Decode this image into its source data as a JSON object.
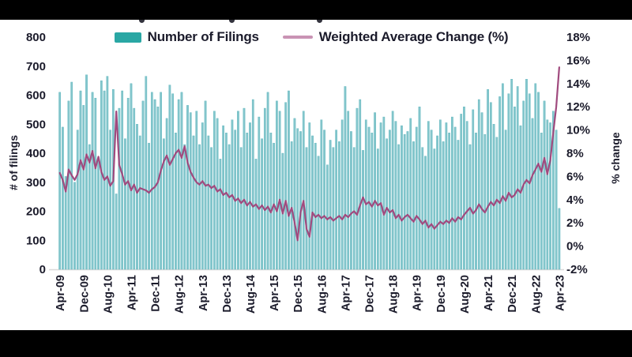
{
  "page": {
    "background": "#ffffff",
    "top_bar_color": "#000000",
    "bottom_bar_color": "#000000",
    "title_note": "title cropped by black bar; only letter descenders visible"
  },
  "colors": {
    "bar_fill": "#84c6cc",
    "bar_edge": "#5ab5bc",
    "bar_legend_swatch": "#2aa7a4",
    "line_stroke": "#a04a7e",
    "line_legend_swatch": "#c993b4",
    "text": "#1b1b2b",
    "axis_line": "#d9d9d9"
  },
  "legend": {
    "bar_label": "Number of Filings",
    "line_label": "Weighted Average Change (%)"
  },
  "axes": {
    "left_title": "# of filings",
    "right_title": "% change",
    "left_ticks": [
      "800",
      "700",
      "600",
      "500",
      "400",
      "300",
      "200",
      "100",
      "0"
    ],
    "right_ticks": [
      "18%",
      "16%",
      "14%",
      "12%",
      "10%",
      "8%",
      "6%",
      "4%",
      "2%",
      "0%",
      "-2%"
    ]
  },
  "chart_data": {
    "type": "bar",
    "subtype": "combo-bar-line-dual-axis",
    "x_unit": "month",
    "x_start": "Apr-09",
    "x_end": "Apr-23",
    "n_points": 169,
    "x_tick_every_n_months": 8,
    "x_tick_labels": [
      "Apr-09",
      "Dec-09",
      "Aug-10",
      "Apr-11",
      "Dec-11",
      "Aug-12",
      "Apr-13",
      "Dec-13",
      "Aug-14",
      "Apr-15",
      "Dec-15",
      "Aug-16",
      "Apr-17",
      "Dec-17",
      "Aug-18",
      "Apr-19",
      "Dec-19",
      "Aug-20",
      "Apr-21",
      "Dec-21",
      "Aug-22",
      "Apr-23"
    ],
    "left_axis": {
      "label": "# of filings",
      "min": 0,
      "max": 800,
      "step": 100
    },
    "right_axis": {
      "label": "% change",
      "min": -2,
      "max": 18,
      "step": 2,
      "format": "percent"
    },
    "grid": false,
    "legend_position": "top-center",
    "series": [
      {
        "name": "Number of Filings",
        "type": "bar",
        "axis": "left",
        "values": [
          610,
          490,
          320,
          580,
          645,
          300,
          480,
          615,
          565,
          670,
          430,
          610,
          590,
          380,
          650,
          615,
          665,
          480,
          620,
          260,
          555,
          615,
          450,
          590,
          640,
          555,
          500,
          460,
          580,
          665,
          435,
          610,
          585,
          560,
          610,
          450,
          520,
          635,
          605,
          470,
          585,
          610,
          430,
          565,
          540,
          460,
          545,
          430,
          505,
          580,
          460,
          420,
          545,
          520,
          380,
          495,
          470,
          430,
          515,
          480,
          545,
          420,
          555,
          470,
          505,
          585,
          380,
          525,
          450,
          555,
          610,
          470,
          435,
          580,
          545,
          400,
          575,
          615,
          440,
          520,
          485,
          475,
          545,
          420,
          505,
          460,
          435,
          390,
          515,
          480,
          360,
          445,
          420,
          480,
          440,
          515,
          630,
          545,
          475,
          420,
          555,
          585,
          410,
          515,
          490,
          470,
          540,
          415,
          505,
          525,
          450,
          480,
          545,
          510,
          430,
          495,
          465,
          475,
          520,
          440,
          490,
          560,
          420,
          390,
          510,
          480,
          415,
          460,
          515,
          440,
          505,
          470,
          525,
          490,
          445,
          535,
          560,
          510,
          430,
          550,
          470,
          585,
          540,
          465,
          620,
          575,
          500,
          455,
          595,
          640,
          480,
          605,
          655,
          560,
          630,
          495,
          580,
          655,
          605,
          520,
          640,
          610,
          470,
          580,
          515,
          505,
          545,
          480,
          210
        ]
      },
      {
        "name": "Weighted Average Change (%)",
        "type": "line",
        "axis": "right",
        "values": [
          6.3,
          5.7,
          4.7,
          6.6,
          6.1,
          5.7,
          6.2,
          7.4,
          6.6,
          7.9,
          7.2,
          8.2,
          6.7,
          7.7,
          6.4,
          5.7,
          6.0,
          5.2,
          5.6,
          11.6,
          7.0,
          6.2,
          5.3,
          5.6,
          4.8,
          5.3,
          4.6,
          5.0,
          4.9,
          4.8,
          4.6,
          4.9,
          5.1,
          5.5,
          6.5,
          7.3,
          7.8,
          7.0,
          7.5,
          8.0,
          8.3,
          7.6,
          8.6,
          7.2,
          6.4,
          5.9,
          5.5,
          5.3,
          5.6,
          5.2,
          5.3,
          5.0,
          5.2,
          4.7,
          4.9,
          4.4,
          4.6,
          4.2,
          4.4,
          3.9,
          4.1,
          3.7,
          4.0,
          3.5,
          3.8,
          3.4,
          3.6,
          3.2,
          3.5,
          3.1,
          3.4,
          2.9,
          3.6,
          3.0,
          4.0,
          2.8,
          3.9,
          2.6,
          3.3,
          2.0,
          0.5,
          2.9,
          3.9,
          1.5,
          0.8,
          2.9,
          2.5,
          2.7,
          2.4,
          2.6,
          2.3,
          2.5,
          2.2,
          2.4,
          2.6,
          2.3,
          2.7,
          2.5,
          2.8,
          3.0,
          2.7,
          3.5,
          4.2,
          3.6,
          3.8,
          3.4,
          3.9,
          3.5,
          3.7,
          2.7,
          3.3,
          2.9,
          3.1,
          2.4,
          2.7,
          2.2,
          2.5,
          2.7,
          2.4,
          2.1,
          2.6,
          2.3,
          1.9,
          2.2,
          1.6,
          1.9,
          1.5,
          1.8,
          2.1,
          1.9,
          2.2,
          2.0,
          2.4,
          2.1,
          2.5,
          2.3,
          2.7,
          3.0,
          3.3,
          2.8,
          3.1,
          3.6,
          3.2,
          2.9,
          3.4,
          3.8,
          3.5,
          4.0,
          3.7,
          4.3,
          3.9,
          4.6,
          4.2,
          4.4,
          4.9,
          4.6,
          5.3,
          5.7,
          5.4,
          6.1,
          6.6,
          7.1,
          6.4,
          7.6,
          6.2,
          7.4,
          9.8,
          12.0,
          15.4
        ]
      }
    ]
  }
}
